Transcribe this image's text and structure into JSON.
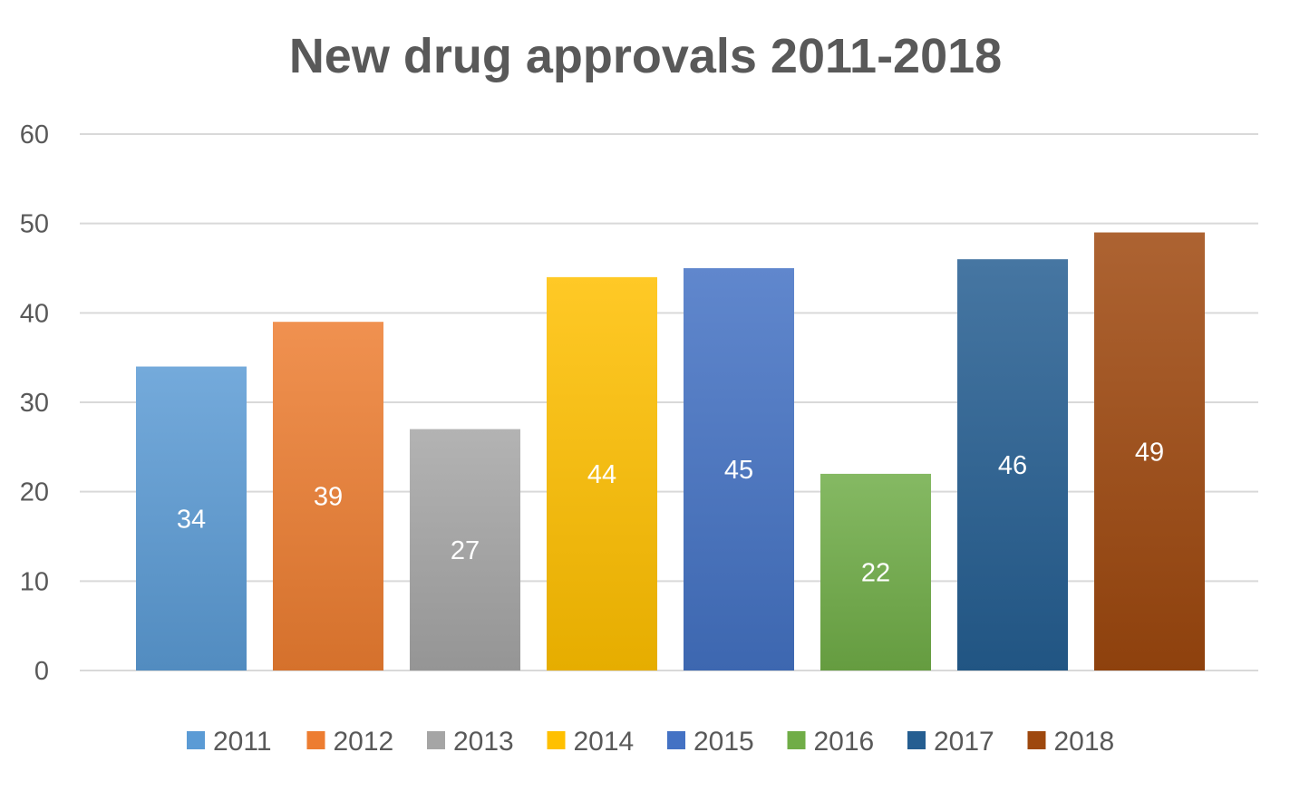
{
  "chart_data": {
    "type": "bar",
    "title": "New drug approvals 2011-2018",
    "xlabel": "",
    "ylabel": "",
    "ylim": [
      0,
      60
    ],
    "yticks": [
      0,
      10,
      20,
      30,
      40,
      50,
      60
    ],
    "grid": true,
    "legend_position": "bottom",
    "data_labels": true,
    "series": [
      {
        "name": "2011",
        "value": 34,
        "color": "#5B9BD5"
      },
      {
        "name": "2012",
        "value": 39,
        "color": "#ED7D31"
      },
      {
        "name": "2013",
        "value": 27,
        "color": "#A5A5A5"
      },
      {
        "name": "2014",
        "value": 44,
        "color": "#FFC000"
      },
      {
        "name": "2015",
        "value": 45,
        "color": "#4472C4"
      },
      {
        "name": "2016",
        "value": 22,
        "color": "#70AD47"
      },
      {
        "name": "2017",
        "value": 46,
        "color": "#255E91"
      },
      {
        "name": "2018",
        "value": 49,
        "color": "#9E480E"
      }
    ]
  },
  "colors": {
    "title": "#595959",
    "axis_text": "#595959",
    "gridline": "#D9D9D9",
    "data_label": "#FFFFFF",
    "background": "#FFFFFF"
  }
}
